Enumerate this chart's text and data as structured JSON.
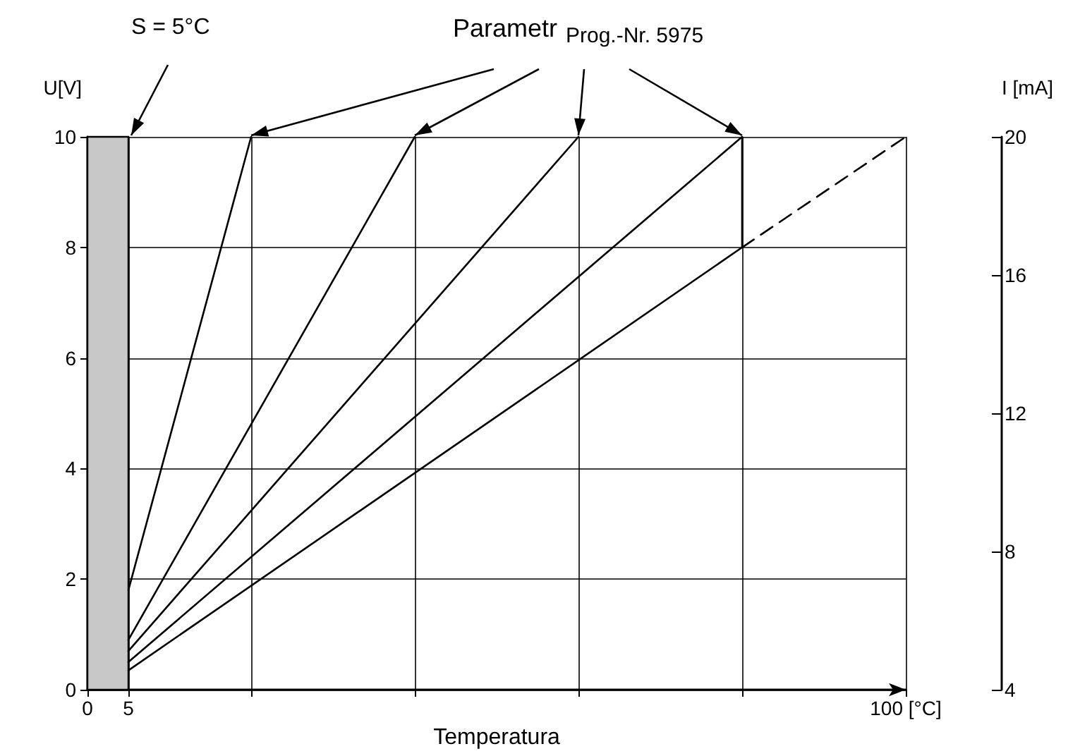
{
  "chart_data": {
    "type": "line",
    "xlabel": "Temperatura",
    "ylabel": "U[V]",
    "y2label": "I [mA]",
    "xlim": [
      0,
      100
    ],
    "xticks": [
      0,
      5,
      {
        "value": 20,
        "label": null
      },
      {
        "value": 40,
        "label": null
      },
      {
        "value": 60,
        "label": null
      },
      {
        "value": 80,
        "label": null
      },
      {
        "value": 100,
        "label": "100 [°C]"
      }
    ],
    "ylim": [
      0,
      10
    ],
    "yticks": [
      0,
      2,
      4,
      6,
      8,
      10
    ],
    "y2lim": [
      4,
      20
    ],
    "y2ticks": [
      4,
      8,
      12,
      16,
      20
    ],
    "grid": true,
    "marker": "none",
    "bands": [
      {
        "axis": "x",
        "from": 0,
        "to": 5,
        "label": "S = 5°C",
        "color": "#c8c8c8"
      }
    ],
    "annotations": [
      "Parametr",
      "Prog.-Nr. 5975"
    ],
    "series": [
      {
        "color": "#000000",
        "x": [
          5,
          20
        ],
        "values": [
          1.8,
          10
        ]
      },
      {
        "color": "#000000",
        "x": [
          5,
          40
        ],
        "values": [
          0.9,
          10
        ]
      },
      {
        "color": "#000000",
        "x": [
          5,
          60
        ],
        "values": [
          0.7,
          10
        ]
      },
      {
        "color": "#000000",
        "x": [
          5,
          80
        ],
        "values": [
          0.5,
          10
        ]
      },
      {
        "color": "#000000",
        "x": [
          5,
          80,
          80
        ],
        "values": [
          0.35,
          8,
          10
        ]
      },
      {
        "color": "#000000",
        "x": [
          80,
          100
        ],
        "values": [
          8,
          10
        ],
        "line_style": "dashed"
      }
    ]
  }
}
